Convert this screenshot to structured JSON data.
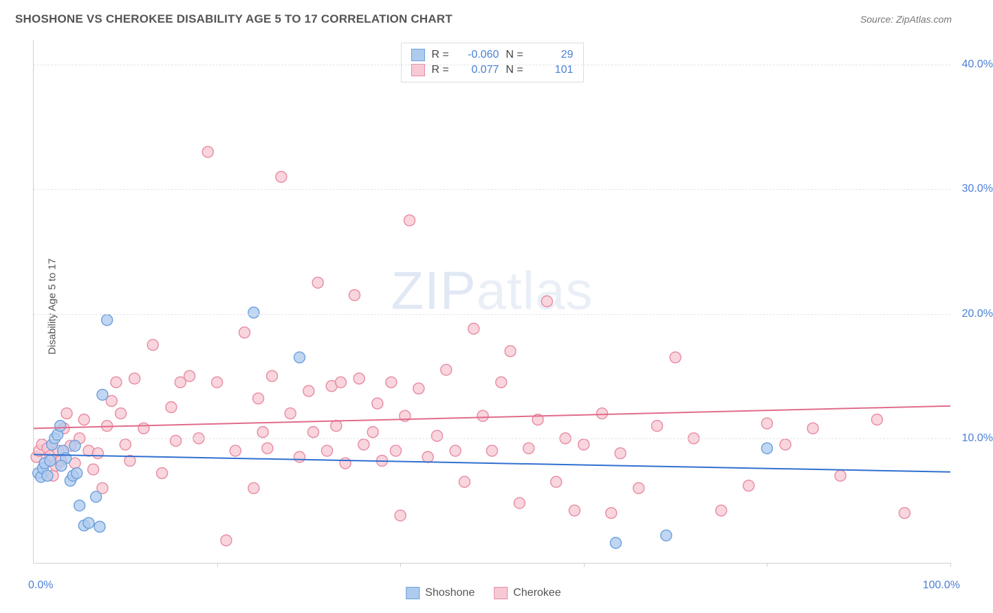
{
  "title": "SHOSHONE VS CHEROKEE DISABILITY AGE 5 TO 17 CORRELATION CHART",
  "source": "Source: ZipAtlas.com",
  "y_axis_label": "Disability Age 5 to 17",
  "watermark_a": "ZIP",
  "watermark_b": "atlas",
  "chart": {
    "type": "scatter",
    "xlim": [
      0,
      100
    ],
    "ylim": [
      0,
      42
    ],
    "x_ticks": [
      0,
      20,
      40,
      60,
      80,
      100
    ],
    "y_ticks": [
      10,
      20,
      30,
      40
    ],
    "y_tick_labels": [
      "10.0%",
      "20.0%",
      "30.0%",
      "40.0%"
    ],
    "x_min_label": "0.0%",
    "x_max_label": "100.0%",
    "grid_color": "#e4e4e4",
    "axis_color": "#cfd0d1",
    "background_color": "#ffffff",
    "tick_label_color": "#4a7fd6",
    "marker_radius": 8,
    "marker_stroke_width": 1.4,
    "trend_line_width": 2
  },
  "series": {
    "shoshone": {
      "label": "Shoshone",
      "fill": "#aecbee",
      "stroke": "#6b9fdc",
      "line_color": "#2f6fd0",
      "opacity": 0.78,
      "R": "-0.060",
      "N": "29",
      "trend": {
        "y_at_x0": 8.7,
        "y_at_x100": 7.3
      },
      "points": [
        [
          0.5,
          7.2
        ],
        [
          0.8,
          6.9
        ],
        [
          1.0,
          7.6
        ],
        [
          1.2,
          8.0
        ],
        [
          1.5,
          7.0
        ],
        [
          1.8,
          8.2
        ],
        [
          2.0,
          9.5
        ],
        [
          2.3,
          10.0
        ],
        [
          2.6,
          10.3
        ],
        [
          2.9,
          11.0
        ],
        [
          3.2,
          9.0
        ],
        [
          3.5,
          8.4
        ],
        [
          4.0,
          6.6
        ],
        [
          4.3,
          7.0
        ],
        [
          4.7,
          7.2
        ],
        [
          5.0,
          4.6
        ],
        [
          5.5,
          3.0
        ],
        [
          6.0,
          3.2
        ],
        [
          6.8,
          5.3
        ],
        [
          7.2,
          2.9
        ],
        [
          7.5,
          13.5
        ],
        [
          8.0,
          19.5
        ],
        [
          24.0,
          20.1
        ],
        [
          29.0,
          16.5
        ],
        [
          63.5,
          1.6
        ],
        [
          69.0,
          2.2
        ],
        [
          80.0,
          9.2
        ],
        [
          4.5,
          9.4
        ],
        [
          3.0,
          7.8
        ]
      ]
    },
    "cherokee": {
      "label": "Cherokee",
      "fill": "#f7c9d4",
      "stroke": "#e78aa2",
      "line_color": "#e06b8a",
      "opacity": 0.78,
      "R": "0.077",
      "N": "101",
      "trend": {
        "y_at_x0": 10.8,
        "y_at_x100": 12.6
      },
      "points": [
        [
          0.3,
          8.5
        ],
        [
          0.6,
          9.0
        ],
        [
          0.9,
          9.5
        ],
        [
          1.2,
          8.0
        ],
        [
          1.5,
          9.2
        ],
        [
          1.8,
          8.6
        ],
        [
          2.1,
          7.0
        ],
        [
          2.4,
          7.8
        ],
        [
          2.7,
          9.0
        ],
        [
          3.0,
          8.2
        ],
        [
          3.3,
          10.8
        ],
        [
          3.6,
          12.0
        ],
        [
          4.0,
          9.4
        ],
        [
          4.5,
          8.0
        ],
        [
          5.0,
          10.0
        ],
        [
          5.5,
          11.5
        ],
        [
          6.0,
          9.0
        ],
        [
          6.5,
          7.5
        ],
        [
          7.0,
          8.8
        ],
        [
          7.5,
          6.0
        ],
        [
          8.0,
          11.0
        ],
        [
          8.5,
          13.0
        ],
        [
          9.0,
          14.5
        ],
        [
          9.5,
          12.0
        ],
        [
          10.0,
          9.5
        ],
        [
          10.5,
          8.2
        ],
        [
          11.0,
          14.8
        ],
        [
          12.0,
          10.8
        ],
        [
          13.0,
          17.5
        ],
        [
          14.0,
          7.2
        ],
        [
          15.0,
          12.5
        ],
        [
          15.5,
          9.8
        ],
        [
          16.0,
          14.5
        ],
        [
          17.0,
          15.0
        ],
        [
          18.0,
          10.0
        ],
        [
          19.0,
          33.0
        ],
        [
          20.0,
          14.5
        ],
        [
          21.0,
          1.8
        ],
        [
          22.0,
          9.0
        ],
        [
          23.0,
          18.5
        ],
        [
          24.0,
          6.0
        ],
        [
          24.5,
          13.2
        ],
        [
          25.0,
          10.5
        ],
        [
          25.5,
          9.2
        ],
        [
          26.0,
          15.0
        ],
        [
          27.0,
          31.0
        ],
        [
          28.0,
          12.0
        ],
        [
          29.0,
          8.5
        ],
        [
          30.0,
          13.8
        ],
        [
          30.5,
          10.5
        ],
        [
          31.0,
          22.5
        ],
        [
          32.0,
          9.0
        ],
        [
          32.5,
          14.2
        ],
        [
          33.0,
          11.0
        ],
        [
          33.5,
          14.5
        ],
        [
          34.0,
          8.0
        ],
        [
          35.0,
          21.5
        ],
        [
          35.5,
          14.8
        ],
        [
          36.0,
          9.5
        ],
        [
          37.0,
          10.5
        ],
        [
          37.5,
          12.8
        ],
        [
          38.0,
          8.2
        ],
        [
          39.0,
          14.5
        ],
        [
          39.5,
          9.0
        ],
        [
          40.0,
          3.8
        ],
        [
          40.5,
          11.8
        ],
        [
          41.0,
          27.5
        ],
        [
          42.0,
          14.0
        ],
        [
          43.0,
          8.5
        ],
        [
          44.0,
          10.2
        ],
        [
          45.0,
          15.5
        ],
        [
          46.0,
          9.0
        ],
        [
          47.0,
          6.5
        ],
        [
          48.0,
          18.8
        ],
        [
          49.0,
          11.8
        ],
        [
          50.0,
          9.0
        ],
        [
          51.0,
          14.5
        ],
        [
          52.0,
          17.0
        ],
        [
          53.0,
          4.8
        ],
        [
          54.0,
          9.2
        ],
        [
          55.0,
          11.5
        ],
        [
          56.0,
          21.0
        ],
        [
          57.0,
          6.5
        ],
        [
          58.0,
          10.0
        ],
        [
          59.0,
          4.2
        ],
        [
          60.0,
          9.5
        ],
        [
          62.0,
          12.0
        ],
        [
          63.0,
          4.0
        ],
        [
          64.0,
          8.8
        ],
        [
          66.0,
          6.0
        ],
        [
          68.0,
          11.0
        ],
        [
          70.0,
          16.5
        ],
        [
          72.0,
          10.0
        ],
        [
          75.0,
          4.2
        ],
        [
          78.0,
          6.2
        ],
        [
          80.0,
          11.2
        ],
        [
          82.0,
          9.5
        ],
        [
          85.0,
          10.8
        ],
        [
          88.0,
          7.0
        ],
        [
          92.0,
          11.5
        ],
        [
          95.0,
          4.0
        ]
      ]
    }
  },
  "legend_stats": {
    "R_label": "R =",
    "N_label": "N ="
  },
  "bottom_legend": {
    "items": [
      "shoshone",
      "cherokee"
    ]
  }
}
